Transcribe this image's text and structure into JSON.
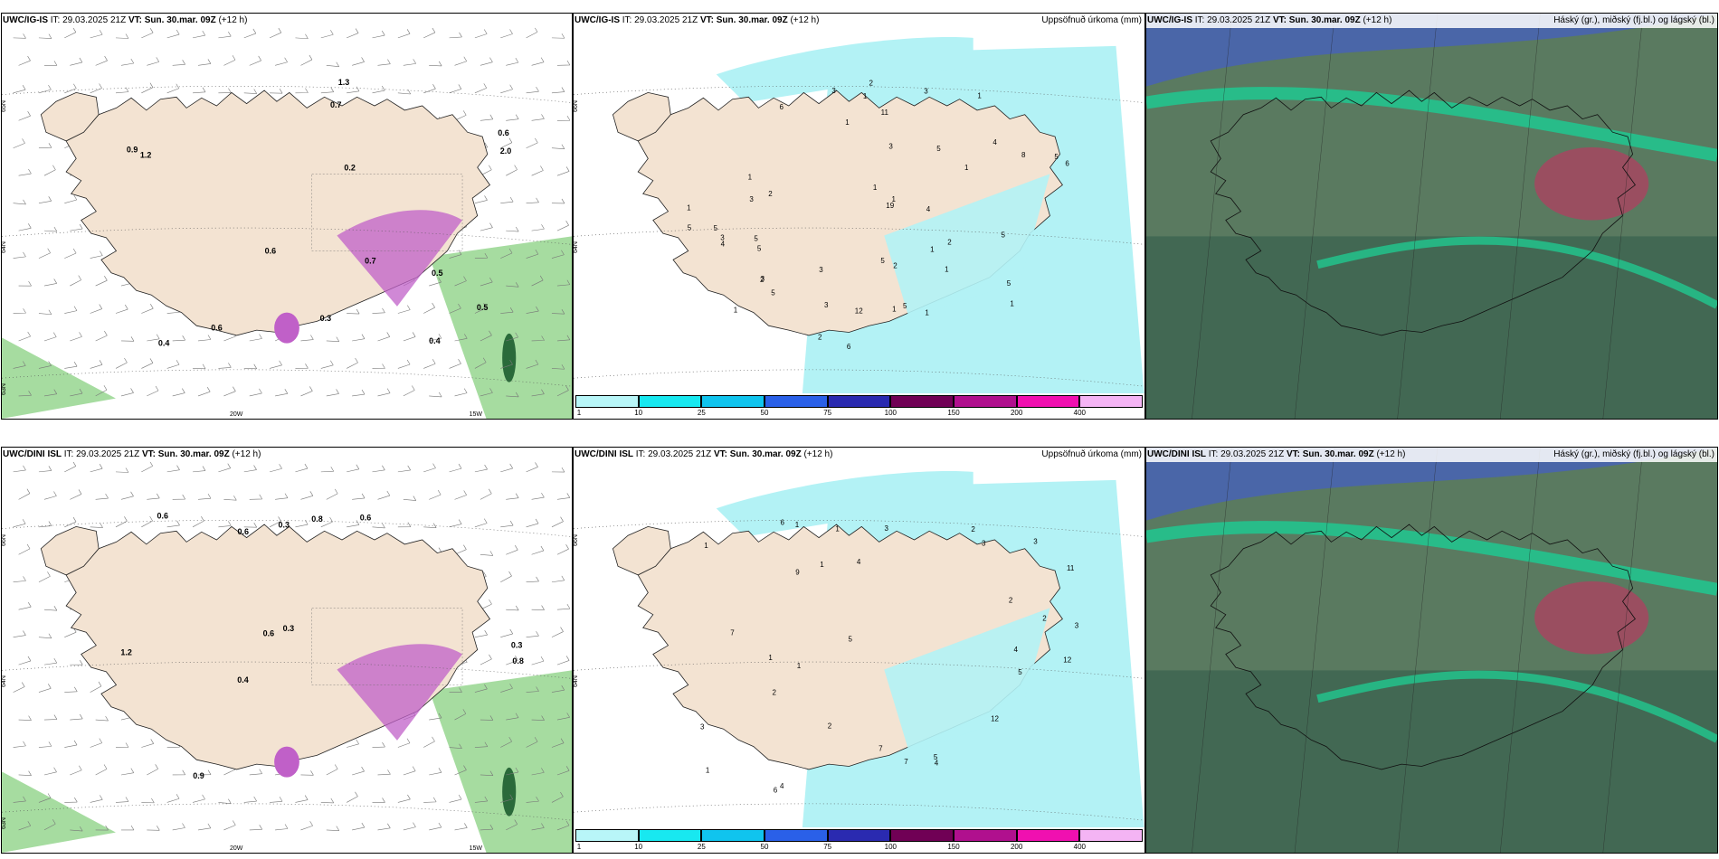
{
  "panels": [
    {
      "model": "UWC/IG-IS",
      "it_label": "IT:",
      "it_value": "29.03.2025 21Z",
      "vt_label": "VT:",
      "vt_value": "Sun. 30.mar. 09Z",
      "lead": "(+12 h)",
      "right_title": "",
      "lat_labels": [
        "65N",
        "64N",
        "63N"
      ],
      "lon_labels": [
        "20W",
        "15W"
      ],
      "values": [
        "0.9",
        "0.6",
        "0.5",
        "0.4",
        "0.4",
        "0.5",
        "0.3",
        "2.0",
        "1.3",
        "0.2",
        "0.6",
        "0.7",
        "0.7",
        "0.6",
        "1.2"
      ]
    },
    {
      "model": "UWC/IG-IS",
      "it_label": "IT:",
      "it_value": "29.03.2025 21Z",
      "vt_label": "VT:",
      "vt_value": "Sun. 30.mar. 09Z",
      "lead": "(+12 h)",
      "right_title": "Uppsöfnuð úrkoma (mm)",
      "lat_labels": [
        "66N",
        "64N"
      ],
      "lon_labels": [],
      "values": [
        "1",
        "1",
        "6",
        "4",
        "2",
        "2",
        "5",
        "3",
        "8",
        "1",
        "5",
        "2",
        "1",
        "19",
        "6",
        "3",
        "1",
        "1",
        "2",
        "2",
        "1",
        "1",
        "1",
        "1",
        "1",
        "3",
        "3",
        "3",
        "3",
        "2",
        "1",
        "5",
        "5",
        "5",
        "5",
        "4",
        "5",
        "4",
        "5",
        "5",
        "6",
        "11",
        "12",
        "5",
        "5",
        "3",
        "1",
        "1",
        "3"
      ]
    },
    {
      "model": "UWC/IG-IS",
      "it_label": "IT:",
      "it_value": "29.03.2025 21Z",
      "vt_label": "VT:",
      "vt_value": "Sun. 30.mar. 09Z",
      "lead": "(+12 h)",
      "right_title": "Háský (gr.), miðský (fj.bl.) og lágský (bl.)",
      "lat_labels": [],
      "lon_labels": [],
      "values": []
    },
    {
      "model": "UWC/DINI ISL",
      "it_label": "IT:",
      "it_value": "29.03.2025 21Z",
      "vt_label": "VT:",
      "vt_value": "Sun. 30.mar. 09Z",
      "lead": "(+12 h)",
      "right_title": "",
      "lat_labels": [
        "66N",
        "64N",
        "63N"
      ],
      "lon_labels": [
        "20W",
        "15W"
      ],
      "values": [
        "0.6",
        "0.4",
        "0.6",
        "0.3",
        "0.3",
        "0.3",
        "0.9",
        "0.6",
        "1.2",
        "0.6",
        "0.8",
        "0.8"
      ]
    },
    {
      "model": "UWC/DINI ISL",
      "it_label": "IT:",
      "it_value": "29.03.2025 21Z",
      "vt_label": "VT:",
      "vt_value": "Sun. 30.mar. 09Z",
      "lead": "(+12 h)",
      "right_title": "Uppsöfnuð úrkoma (mm)",
      "lat_labels": [
        "66N",
        "64N"
      ],
      "lon_labels": [],
      "values": [
        "5",
        "2",
        "4",
        "3",
        "6",
        "7",
        "7",
        "1",
        "1",
        "2",
        "1",
        "1",
        "1",
        "2",
        "3",
        "2",
        "1",
        "3",
        "3",
        "4",
        "6",
        "5",
        "5",
        "4",
        "2",
        "3",
        "12",
        "12",
        "11",
        "7",
        "4",
        "1",
        "9"
      ]
    },
    {
      "model": "UWC/DINI ISL",
      "it_label": "IT:",
      "it_value": "29.03.2025 21Z",
      "vt_label": "VT:",
      "vt_value": "Sun. 30.mar. 09Z",
      "lead": "(+12 h)",
      "right_title": "Háský (gr.), miðský (fj.bl.) og lágský (bl.)",
      "lat_labels": [],
      "lon_labels": [],
      "values": []
    }
  ],
  "precip_legend": {
    "ticks": [
      "1",
      "10",
      "25",
      "50",
      "75",
      "100",
      "150",
      "200",
      "400"
    ],
    "colors": [
      "#b8f6f8",
      "#18e8f0",
      "#10c4ee",
      "#2a60e8",
      "#2a2ab0",
      "#700055",
      "#b0108e",
      "#f010b0",
      "#f4b4f4"
    ]
  },
  "colors": {
    "land": "#f3e3d2",
    "snow_land": "#e8d8c5",
    "precip_light": "#b3f2f5",
    "wind_green": "#a6dca0",
    "wind_dark": "#2a6a3a",
    "magenta": "#c060c8",
    "cloud_high": "#20c890",
    "cloud_mid": "#3a6e9c",
    "cloud_low": "#4a66a8",
    "cloud_base": "#5a7a60"
  }
}
